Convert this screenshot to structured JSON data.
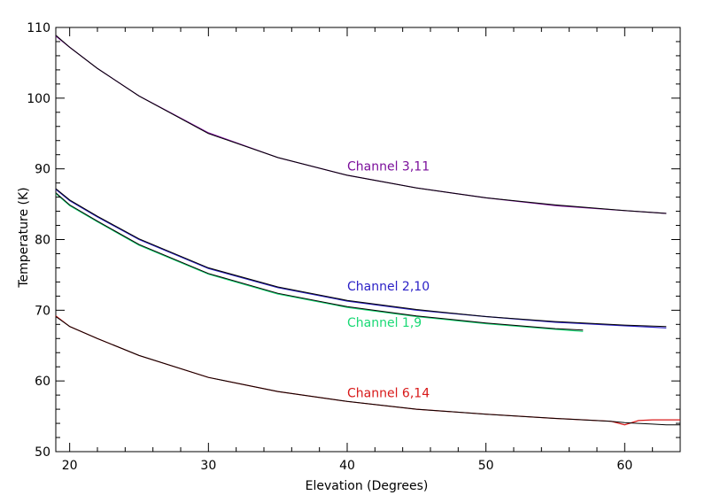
{
  "chart_data": {
    "type": "line",
    "title": "",
    "xlabel": "Elevation (Degrees)",
    "ylabel": "Temperature (K)",
    "xlim": [
      19,
      64
    ],
    "ylim": [
      50,
      110
    ],
    "xticks": [
      20,
      30,
      40,
      50,
      60
    ],
    "yticks": [
      50,
      60,
      70,
      80,
      90,
      100,
      110
    ],
    "grid": false,
    "legend": "none",
    "series": [
      {
        "label": "Channel 3,11",
        "label_position": [
          40,
          90.4
        ],
        "color": "#7b0f9b",
        "ref_color": "#000000",
        "x": [
          19,
          20,
          22,
          25,
          30,
          35,
          40,
          45,
          50,
          55,
          60,
          63
        ],
        "y": [
          108.8,
          107.2,
          104.2,
          100.3,
          95.1,
          91.6,
          89.1,
          87.3,
          85.9,
          84.8,
          84.1,
          83.7
        ],
        "ref_y": [
          108.9,
          107.2,
          104.2,
          100.3,
          95.0,
          91.6,
          89.1,
          87.3,
          85.9,
          84.9,
          84.1,
          83.7
        ]
      },
      {
        "label": "Channel 2,10",
        "label_position": [
          40,
          73.4
        ],
        "color": "#2a1fc6",
        "ref_color": "#000000",
        "x": [
          19,
          20,
          22,
          25,
          30,
          35,
          40,
          45,
          50,
          55,
          60,
          63
        ],
        "y": [
          87.1,
          85.5,
          83.2,
          80.0,
          75.9,
          73.2,
          71.3,
          70.0,
          69.1,
          68.3,
          67.8,
          67.5
        ],
        "ref_y": [
          87.2,
          85.6,
          83.3,
          80.1,
          76.0,
          73.3,
          71.4,
          70.1,
          69.1,
          68.4,
          67.9,
          67.7
        ]
      },
      {
        "label": "Channel 1,9",
        "label_position": [
          40,
          68.3
        ],
        "color": "#19d975",
        "ref_color": "#000000",
        "x": [
          19,
          20,
          22,
          25,
          30,
          35,
          40,
          45,
          50,
          55,
          57
        ],
        "y": [
          86.5,
          84.8,
          82.5,
          79.2,
          75.1,
          72.3,
          70.4,
          69.1,
          68.1,
          67.3,
          67.0
        ],
        "ref_y": [
          86.6,
          84.9,
          82.6,
          79.3,
          75.2,
          72.4,
          70.5,
          69.2,
          68.2,
          67.4,
          67.2
        ]
      },
      {
        "label": "Channel 6,14",
        "label_position": [
          40,
          58.3
        ],
        "color": "#d81818",
        "ref_color": "#000000",
        "x": [
          19,
          20,
          22,
          25,
          30,
          35,
          40,
          45,
          50,
          55,
          59,
          60,
          61,
          62,
          63,
          64
        ],
        "y": [
          69.2,
          67.7,
          66.0,
          63.6,
          60.5,
          58.5,
          57.1,
          56.0,
          55.3,
          54.7,
          54.3,
          53.8,
          54.4,
          54.5,
          54.5,
          54.5
        ],
        "ref_y": [
          69.1,
          67.7,
          66.0,
          63.6,
          60.5,
          58.5,
          57.1,
          56.0,
          55.3,
          54.7,
          54.3,
          54.1,
          54.0,
          53.9,
          53.8,
          53.8
        ]
      }
    ]
  }
}
